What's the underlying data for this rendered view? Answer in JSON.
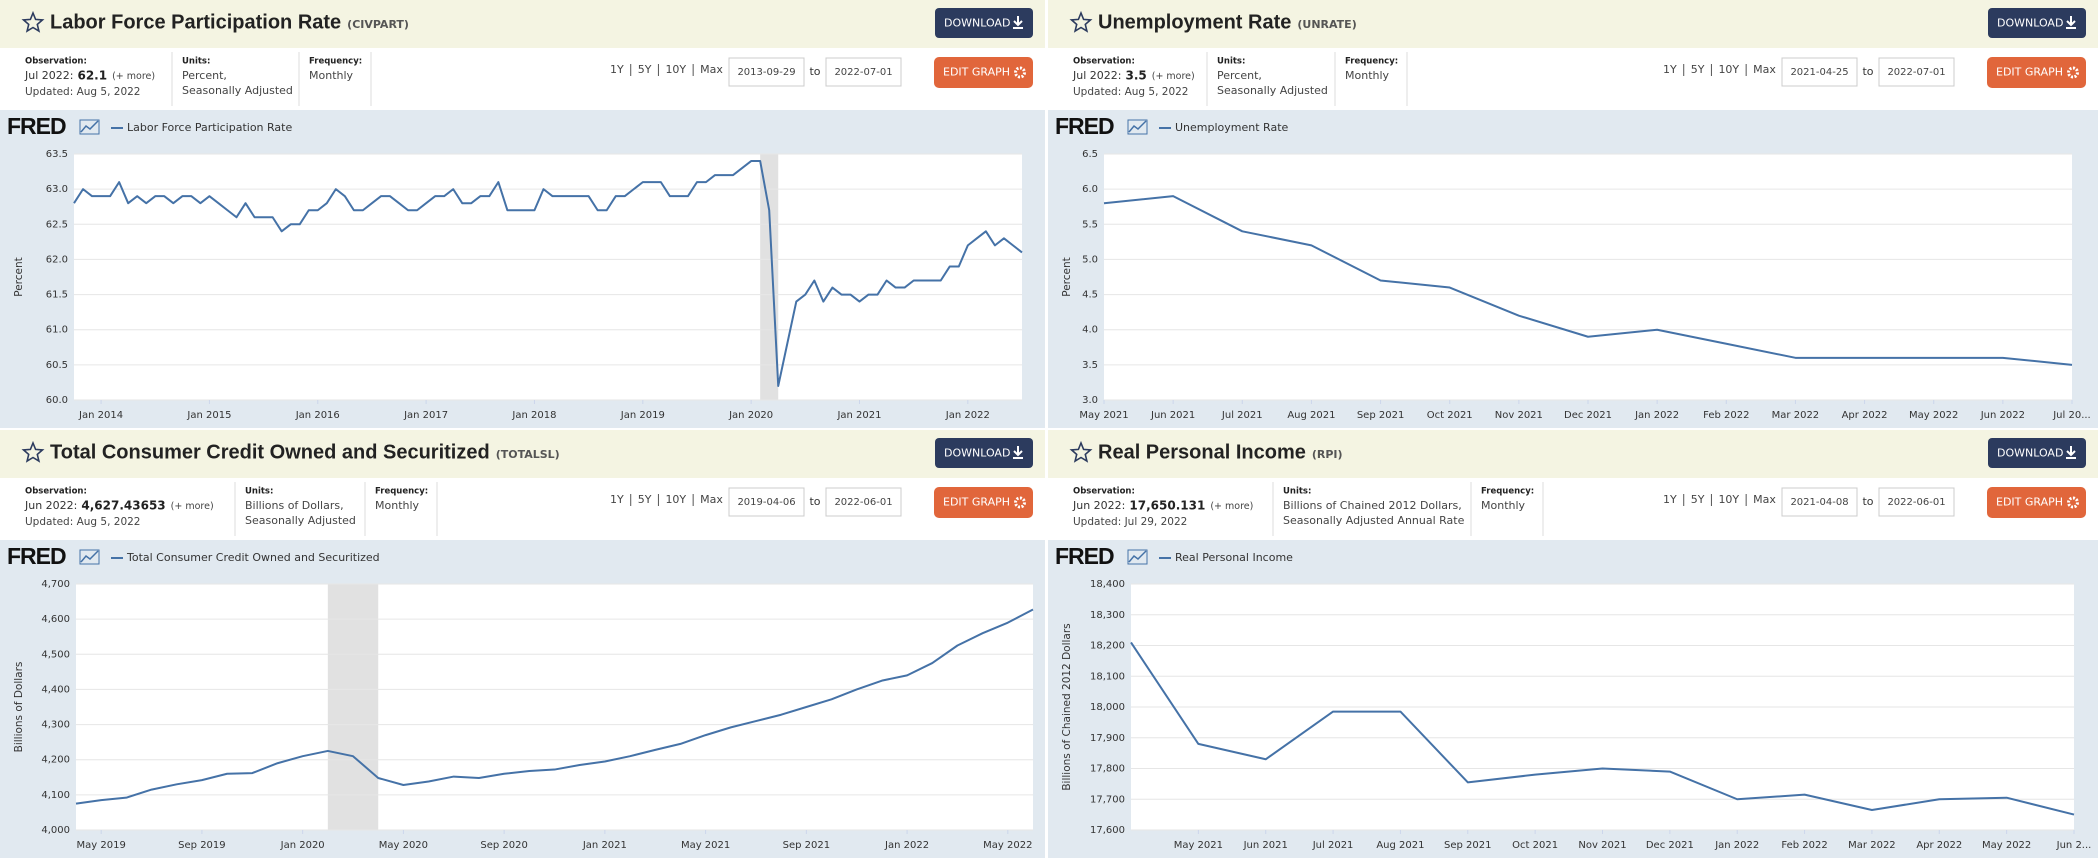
{
  "panels": [
    {
      "title": "Labor Force Participation Rate",
      "code": "(CIVPART)",
      "download": "DOWNLOAD",
      "observation_label": "Observation:",
      "observation_date": "Jul 2022:",
      "observation_value": "62.1",
      "more": "(+ more)",
      "updated": "Updated: Aug 5, 2022",
      "units_label": "Units:",
      "units": [
        "Percent,",
        "Seasonally Adjusted"
      ],
      "frequency_label": "Frequency:",
      "frequency": "Monthly",
      "ranges": [
        "1Y",
        "5Y",
        "10Y",
        "Max"
      ],
      "date_from": "2013-09-29",
      "to": "to",
      "date_to": "2022-07-01",
      "edit": "EDIT GRAPH",
      "logo": "FRED"
    },
    {
      "title": "Unemployment Rate",
      "code": "(UNRATE)",
      "download": "DOWNLOAD",
      "observation_label": "Observation:",
      "observation_date": "Jul 2022:",
      "observation_value": "3.5",
      "more": "(+ more)",
      "updated": "Updated: Aug 5, 2022",
      "units_label": "Units:",
      "units": [
        "Percent,",
        "Seasonally Adjusted"
      ],
      "frequency_label": "Frequency:",
      "frequency": "Monthly",
      "ranges": [
        "1Y",
        "5Y",
        "10Y",
        "Max"
      ],
      "date_from": "2021-04-25",
      "to": "to",
      "date_to": "2022-07-01",
      "edit": "EDIT GRAPH",
      "logo": "FRED"
    },
    {
      "title": "Total Consumer Credit Owned and Securitized",
      "code": "(TOTALSL)",
      "download": "DOWNLOAD",
      "observation_label": "Observation:",
      "observation_date": "Jun 2022:",
      "observation_value": "4,627.43653",
      "more": "(+ more)",
      "updated": "Updated: Aug 5, 2022",
      "units_label": "Units:",
      "units": [
        "Billions of Dollars,",
        "Seasonally Adjusted"
      ],
      "frequency_label": "Frequency:",
      "frequency": "Monthly",
      "ranges": [
        "1Y",
        "5Y",
        "10Y",
        "Max"
      ],
      "date_from": "2019-04-06",
      "to": "to",
      "date_to": "2022-06-01",
      "edit": "EDIT GRAPH",
      "logo": "FRED"
    },
    {
      "title": "Real Personal Income",
      "code": "(RPI)",
      "download": "DOWNLOAD",
      "observation_label": "Observation:",
      "observation_date": "Jun 2022:",
      "observation_value": "17,650.131",
      "more": "(+ more)",
      "updated": "Updated: Jul 29, 2022",
      "units_label": "Units:",
      "units": [
        "Billions of Chained 2012 Dollars,",
        "Seasonally Adjusted Annual Rate"
      ],
      "frequency_label": "Frequency:",
      "frequency": "Monthly",
      "ranges": [
        "1Y",
        "5Y",
        "10Y",
        "Max"
      ],
      "date_from": "2021-04-08",
      "to": "to",
      "date_to": "2022-06-01",
      "edit": "EDIT GRAPH",
      "logo": "FRED"
    }
  ],
  "chart_data": [
    {
      "type": "line",
      "ylabel": "Percent",
      "grid": true,
      "series": [
        {
          "name": "Labor Force Participation Rate",
          "color": "#4572a7",
          "values": [
            62.8,
            63.0,
            62.9,
            62.9,
            62.9,
            63.1,
            62.8,
            62.9,
            62.8,
            62.9,
            62.9,
            62.8,
            62.9,
            62.9,
            62.8,
            62.9,
            62.8,
            62.7,
            62.6,
            62.8,
            62.6,
            62.6,
            62.6,
            62.4,
            62.5,
            62.5,
            62.7,
            62.7,
            62.8,
            63.0,
            62.9,
            62.7,
            62.7,
            62.8,
            62.9,
            62.9,
            62.8,
            62.7,
            62.7,
            62.8,
            62.9,
            62.9,
            63.0,
            62.8,
            62.8,
            62.9,
            62.9,
            63.1,
            62.7,
            62.7,
            62.7,
            62.7,
            63.0,
            62.9,
            62.9,
            62.9,
            62.9,
            62.9,
            62.7,
            62.7,
            62.9,
            62.9,
            63.0,
            63.1,
            63.1,
            63.1,
            62.9,
            62.9,
            62.9,
            63.1,
            63.1,
            63.2,
            63.2,
            63.2,
            63.3,
            63.4,
            63.4,
            62.7,
            60.2,
            60.8,
            61.4,
            61.5,
            61.7,
            61.4,
            61.6,
            61.5,
            61.5,
            61.4,
            61.5,
            61.5,
            61.7,
            61.6,
            61.6,
            61.7,
            61.7,
            61.7,
            61.7,
            61.9,
            61.9,
            62.2,
            62.3,
            62.4,
            62.2,
            62.3,
            62.2,
            62.1
          ]
        }
      ],
      "x": [
        "2013-10",
        "2013-11",
        "2013-12",
        "2014-01",
        "2014-02",
        "2014-03",
        "2014-04",
        "2014-05",
        "2014-06",
        "2014-07",
        "2014-08",
        "2014-09",
        "2014-10",
        "2014-11",
        "2014-12",
        "2015-01",
        "2015-02",
        "2015-03",
        "2015-04",
        "2015-05",
        "2015-06",
        "2015-07",
        "2015-08",
        "2015-09",
        "2015-10",
        "2015-11",
        "2015-12",
        "2016-01",
        "2016-02",
        "2016-03",
        "2016-04",
        "2016-05",
        "2016-06",
        "2016-07",
        "2016-08",
        "2016-09",
        "2016-10",
        "2016-11",
        "2016-12",
        "2017-01",
        "2017-02",
        "2017-03",
        "2017-04",
        "2017-05",
        "2017-06",
        "2017-07",
        "2017-08",
        "2017-09",
        "2017-10",
        "2017-11",
        "2017-12",
        "2018-01",
        "2018-02",
        "2018-03",
        "2018-04",
        "2018-05",
        "2018-06",
        "2018-07",
        "2018-08",
        "2018-09",
        "2018-10",
        "2018-11",
        "2018-12",
        "2019-01",
        "2019-02",
        "2019-03",
        "2019-04",
        "2019-05",
        "2019-06",
        "2019-07",
        "2019-08",
        "2019-09",
        "2019-10",
        "2019-11",
        "2019-12",
        "2020-01",
        "2020-02",
        "2020-03",
        "2020-04",
        "2020-05",
        "2020-06",
        "2020-07",
        "2020-08",
        "2020-09",
        "2020-10",
        "2020-11",
        "2020-12",
        "2021-01",
        "2021-02",
        "2021-03",
        "2021-04",
        "2021-05",
        "2021-06",
        "2021-07",
        "2021-08",
        "2021-09",
        "2021-10",
        "2021-11",
        "2021-12",
        "2022-01",
        "2022-02",
        "2022-03",
        "2022-04",
        "2022-05",
        "2022-06",
        "2022-07"
      ],
      "xlim": [
        "2013-10",
        "2022-07"
      ],
      "xticks": [
        {
          "value": "2014-01",
          "label": "Jan 2014"
        },
        {
          "value": "2015-01",
          "label": "Jan 2015"
        },
        {
          "value": "2016-01",
          "label": "Jan 2016"
        },
        {
          "value": "2017-01",
          "label": "Jan 2017"
        },
        {
          "value": "2018-01",
          "label": "Jan 2018"
        },
        {
          "value": "2019-01",
          "label": "Jan 2019"
        },
        {
          "value": "2020-01",
          "label": "Jan 2020"
        },
        {
          "value": "2021-01",
          "label": "Jan 2021"
        },
        {
          "value": "2022-01",
          "label": "Jan 2022"
        }
      ],
      "ylim": [
        60,
        63.5
      ],
      "yticks": [
        {
          "value": 60,
          "label": "60.0"
        },
        60.5,
        {
          "value": 61,
          "label": "61.0"
        },
        61.5,
        {
          "value": 62,
          "label": "62.0"
        },
        62.5,
        {
          "value": 63,
          "label": "63.0"
        },
        63.5
      ],
      "recessions": [
        [
          "2020-02",
          "2020-04"
        ]
      ]
    },
    {
      "type": "line",
      "ylabel": "Percent",
      "grid": true,
      "series": [
        {
          "name": "Unemployment Rate",
          "color": "#4572a7",
          "values": [
            5.8,
            5.9,
            5.4,
            5.2,
            4.7,
            4.6,
            4.2,
            3.9,
            4.0,
            3.8,
            3.6,
            3.6,
            3.6,
            3.6,
            3.5
          ]
        }
      ],
      "x": [
        "2021-05",
        "2021-06",
        "2021-07",
        "2021-08",
        "2021-09",
        "2021-10",
        "2021-11",
        "2021-12",
        "2022-01",
        "2022-02",
        "2022-03",
        "2022-04",
        "2022-05",
        "2022-06",
        "2022-07"
      ],
      "xlim": [
        "2021-05",
        "2022-07"
      ],
      "xticks": [
        {
          "value": "2021-05",
          "label": "May 2021"
        },
        {
          "value": "2021-06",
          "label": "Jun 2021"
        },
        {
          "value": "2021-07",
          "label": "Jul 2021"
        },
        {
          "value": "2021-08",
          "label": "Aug 2021"
        },
        {
          "value": "2021-09",
          "label": "Sep 2021"
        },
        {
          "value": "2021-10",
          "label": "Oct 2021"
        },
        {
          "value": "2021-11",
          "label": "Nov 2021"
        },
        {
          "value": "2021-12",
          "label": "Dec 2021"
        },
        {
          "value": "2022-01",
          "label": "Jan 2022"
        },
        {
          "value": "2022-02",
          "label": "Feb 2022"
        },
        {
          "value": "2022-03",
          "label": "Mar 2022"
        },
        {
          "value": "2022-04",
          "label": "Apr 2022"
        },
        {
          "value": "2022-05",
          "label": "May 2022"
        },
        {
          "value": "2022-06",
          "label": "Jun 2022"
        },
        {
          "value": "2022-07",
          "label": "Jul 20..."
        }
      ],
      "ylim": [
        3,
        6.5
      ],
      "yticks": [
        {
          "value": 3,
          "label": "3.0"
        },
        3.5,
        {
          "value": 4,
          "label": "4.0"
        },
        4.5,
        {
          "value": 5,
          "label": "5.0"
        },
        5.5,
        {
          "value": 6,
          "label": "6.0"
        },
        6.5
      ],
      "recessions": []
    },
    {
      "type": "line",
      "ylabel": "Billions of Dollars",
      "grid": true,
      "series": [
        {
          "name": "Total Consumer Credit Owned and Securitized",
          "color": "#4572a7",
          "values": [
            4075,
            4085,
            4092,
            4115,
            4130,
            4142,
            4160,
            4162,
            4190,
            4210,
            4225,
            4210,
            4148,
            4128,
            4138,
            4152,
            4148,
            4160,
            4168,
            4172,
            4185,
            4195,
            4210,
            4228,
            4245,
            4270,
            4292,
            4310,
            4328,
            4350,
            4372,
            4400,
            4425,
            4440,
            4475,
            4525,
            4560,
            4590,
            4627.43653
          ]
        }
      ],
      "x": [
        "2019-04",
        "2019-05",
        "2019-06",
        "2019-07",
        "2019-08",
        "2019-09",
        "2019-10",
        "2019-11",
        "2019-12",
        "2020-01",
        "2020-02",
        "2020-03",
        "2020-04",
        "2020-05",
        "2020-06",
        "2020-07",
        "2020-08",
        "2020-09",
        "2020-10",
        "2020-11",
        "2020-12",
        "2021-01",
        "2021-02",
        "2021-03",
        "2021-04",
        "2021-05",
        "2021-06",
        "2021-07",
        "2021-08",
        "2021-09",
        "2021-10",
        "2021-11",
        "2021-12",
        "2022-01",
        "2022-02",
        "2022-03",
        "2022-04",
        "2022-05",
        "2022-06"
      ],
      "xlim": [
        "2019-04",
        "2022-06"
      ],
      "xticks": [
        {
          "value": "2019-05",
          "label": "May 2019"
        },
        {
          "value": "2019-09",
          "label": "Sep 2019"
        },
        {
          "value": "2020-01",
          "label": "Jan 2020"
        },
        {
          "value": "2020-05",
          "label": "May 2020"
        },
        {
          "value": "2020-09",
          "label": "Sep 2020"
        },
        {
          "value": "2021-01",
          "label": "Jan 2021"
        },
        {
          "value": "2021-05",
          "label": "May 2021"
        },
        {
          "value": "2021-09",
          "label": "Sep 2021"
        },
        {
          "value": "2022-01",
          "label": "Jan 2022"
        },
        {
          "value": "2022-05",
          "label": "May 2022"
        }
      ],
      "ylim": [
        4000,
        4700
      ],
      "yticks": [
        {
          "value": 4000,
          "label": "4,000"
        },
        {
          "value": 4100,
          "label": "4,100"
        },
        {
          "value": 4200,
          "label": "4,200"
        },
        {
          "value": 4300,
          "label": "4,300"
        },
        {
          "value": 4400,
          "label": "4,400"
        },
        {
          "value": 4500,
          "label": "4,500"
        },
        {
          "value": 4600,
          "label": "4,600"
        },
        {
          "value": 4700,
          "label": "4,700"
        }
      ],
      "recessions": [
        [
          "2020-02",
          "2020-04"
        ]
      ]
    },
    {
      "type": "line",
      "ylabel": "Billions of Chained 2012 Dollars",
      "grid": true,
      "series": [
        {
          "name": "Real Personal Income",
          "color": "#4572a7",
          "values": [
            18210,
            17880,
            17830,
            17985,
            17985,
            17755,
            17780,
            17800,
            17790,
            17700,
            17715,
            17665,
            17700,
            17705,
            17650.131
          ]
        }
      ],
      "x": [
        "2021-04",
        "2021-05",
        "2021-06",
        "2021-07",
        "2021-08",
        "2021-09",
        "2021-10",
        "2021-11",
        "2021-12",
        "2022-01",
        "2022-02",
        "2022-03",
        "2022-04",
        "2022-05",
        "2022-06"
      ],
      "xlim": [
        "2021-04",
        "2022-06"
      ],
      "xticks": [
        {
          "value": "2021-05",
          "label": "May 2021"
        },
        {
          "value": "2021-06",
          "label": "Jun 2021"
        },
        {
          "value": "2021-07",
          "label": "Jul 2021"
        },
        {
          "value": "2021-08",
          "label": "Aug 2021"
        },
        {
          "value": "2021-09",
          "label": "Sep 2021"
        },
        {
          "value": "2021-10",
          "label": "Oct 2021"
        },
        {
          "value": "2021-11",
          "label": "Nov 2021"
        },
        {
          "value": "2021-12",
          "label": "Dec 2021"
        },
        {
          "value": "2022-01",
          "label": "Jan 2022"
        },
        {
          "value": "2022-02",
          "label": "Feb 2022"
        },
        {
          "value": "2022-03",
          "label": "Mar 2022"
        },
        {
          "value": "2022-04",
          "label": "Apr 2022"
        },
        {
          "value": "2022-05",
          "label": "May 2022"
        },
        {
          "value": "2022-06",
          "label": "Jun 2..."
        }
      ],
      "ylim": [
        17600,
        18400
      ],
      "yticks": [
        {
          "value": 17600,
          "label": "17,600"
        },
        {
          "value": 17700,
          "label": "17,700"
        },
        {
          "value": 17800,
          "label": "17,800"
        },
        {
          "value": 17900,
          "label": "17,900"
        },
        {
          "value": 18000,
          "label": "18,000"
        },
        {
          "value": 18100,
          "label": "18,100"
        },
        {
          "value": 18200,
          "label": "18,200"
        },
        {
          "value": 18300,
          "label": "18,300"
        },
        {
          "value": 18400,
          "label": "18,400"
        }
      ],
      "recessions": []
    }
  ]
}
